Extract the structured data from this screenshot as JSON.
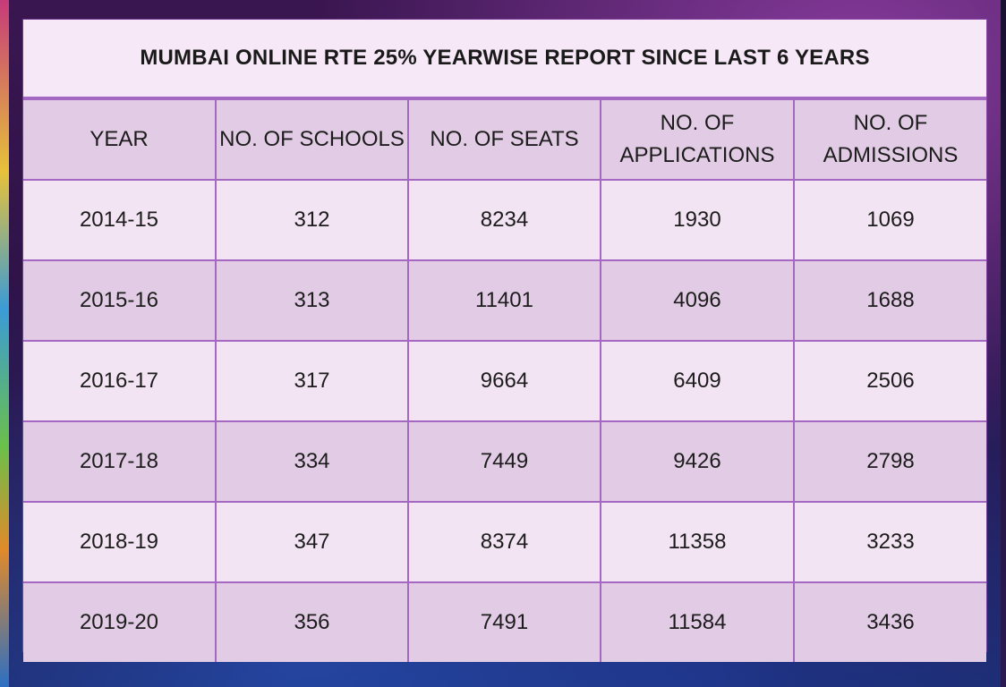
{
  "title": "MUMBAI ONLINE RTE 25% YEARWISE REPORT SINCE LAST 6 YEARS",
  "columns": [
    {
      "line1": "YEAR",
      "line2": ""
    },
    {
      "line1": "NO. OF SCHOOLS",
      "line2": ""
    },
    {
      "line1": "NO. OF SEATS",
      "line2": ""
    },
    {
      "line1": "NO. OF",
      "line2": "APPLICATIONS"
    },
    {
      "line1": "NO. OF",
      "line2": "ADMISSIONS"
    }
  ],
  "rows": [
    [
      "2014-15",
      "312",
      "8234",
      "1930",
      "1069"
    ],
    [
      "2015-16",
      "313",
      "11401",
      "4096",
      "1688"
    ],
    [
      "2016-17",
      "317",
      "9664",
      "6409",
      "2506"
    ],
    [
      "2017-18",
      "334",
      "7449",
      "9426",
      "2798"
    ],
    [
      "2018-19",
      "347",
      "8374",
      "11358",
      "3233"
    ],
    [
      "2019-20",
      "356",
      "7491",
      "11584",
      "3436"
    ]
  ],
  "colors": {
    "header_fill": "#e2cbe4",
    "row_light": "#f3e4f3",
    "row_dark": "#e2cbe4",
    "grid_line": "#a467c2",
    "background": "#2a0f3c"
  }
}
